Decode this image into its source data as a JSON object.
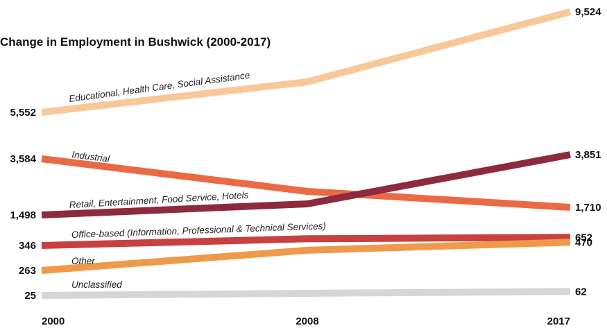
{
  "chart_data": {
    "type": "line",
    "title": "Change in Employment in Bushwick (2000-2017)",
    "x": [
      "2000",
      "2008",
      "2017"
    ],
    "series": [
      {
        "name": "Educational, Health Care, Social Assistance",
        "values": [
          5552,
          6400,
          9524
        ],
        "start_label": "5,552",
        "end_label": "9,524",
        "color": "#f9c89a"
      },
      {
        "name": "Industrial",
        "values": [
          3584,
          2550,
          1710
        ],
        "start_label": "3,584",
        "end_label": "1,710",
        "color": "#ea6a44"
      },
      {
        "name": "Retail, Entertainment, Food Service, Hotels",
        "values": [
          1498,
          1900,
          3851
        ],
        "start_label": "1,498",
        "end_label": "3,851",
        "color": "#8e2a3d"
      },
      {
        "name": "Office-based (Information, Professional & Technical Services)",
        "values": [
          346,
          600,
          652
        ],
        "start_label": "346",
        "end_label": "652",
        "color": "#c84040"
      },
      {
        "name": "Other",
        "values": [
          263,
          330,
          470
        ],
        "start_label": "263",
        "end_label": "470",
        "color": "#ef9a4a"
      },
      {
        "name": "Unclassified",
        "values": [
          25,
          45,
          62
        ],
        "start_label": "25",
        "end_label": "62",
        "color": "#d6d6d6"
      }
    ]
  }
}
